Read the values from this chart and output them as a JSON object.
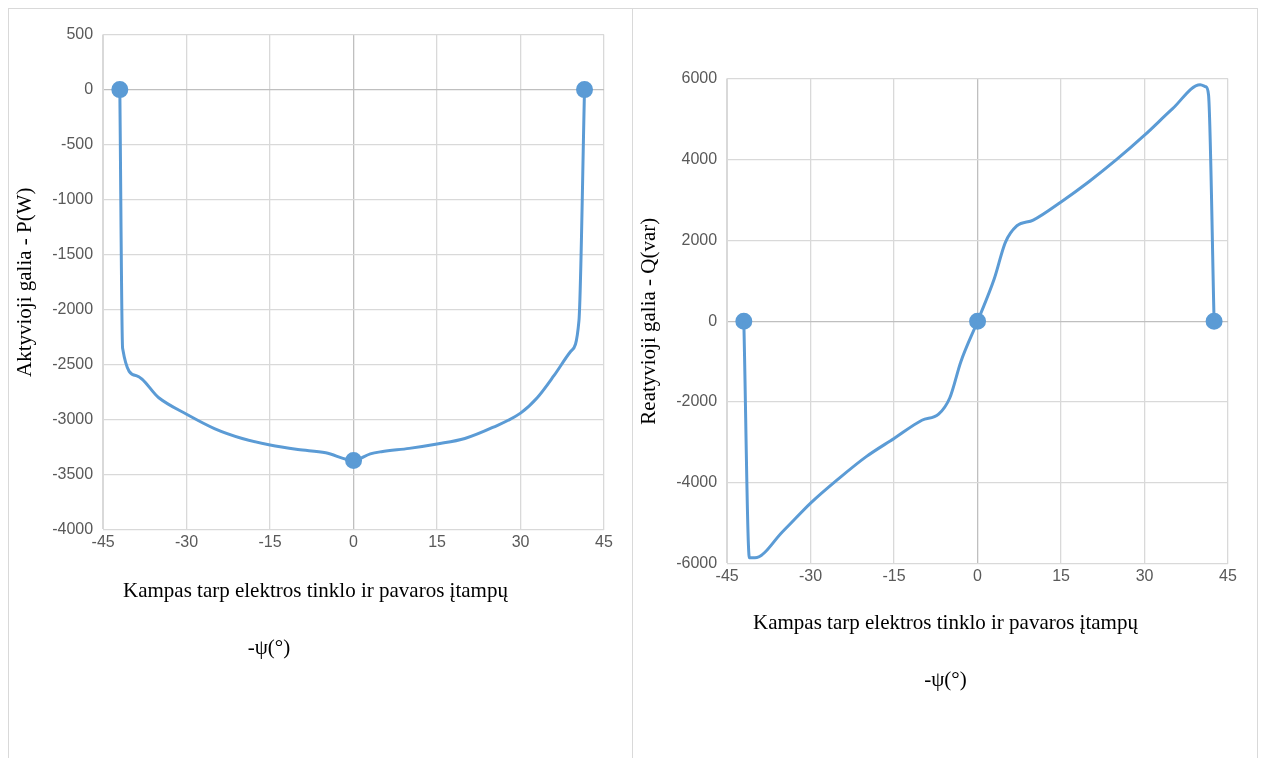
{
  "chart_data": [
    {
      "type": "line",
      "xlabel": "Kampas tarp elektros tinklo ir pavaros įtampų",
      "ylabel": "Aktyvioji galia - P(W)",
      "annotations": [
        "-ψ(°)"
      ],
      "xlim": [
        -45,
        45
      ],
      "xticks": [
        -45,
        -30,
        -15,
        0,
        15,
        30,
        45
      ],
      "ylim": [
        -4000,
        500
      ],
      "yticks": [
        -4000,
        -3500,
        -3000,
        -2500,
        -2000,
        -1500,
        -1000,
        -500,
        0,
        500
      ],
      "grid": true,
      "legend": false,
      "series": [
        {
          "marker": "none",
          "color": "#5b9bd5",
          "x": [
            -42,
            -41.5,
            -39,
            -35,
            -30,
            -25,
            -20,
            -15,
            -10,
            -5,
            0,
            3,
            5,
            10,
            15,
            20,
            25,
            30,
            33,
            36,
            39,
            40.5,
            41.5
          ],
          "values": [
            0,
            -2350,
            -2600,
            -2800,
            -2950,
            -3080,
            -3170,
            -3230,
            -3270,
            -3300,
            -3370,
            -3310,
            -3290,
            -3260,
            -3220,
            -3170,
            -3070,
            -2940,
            -2800,
            -2600,
            -2380,
            -2100,
            0
          ]
        },
        {
          "type": "scatter",
          "marker": "circle",
          "color": "#5b9bd5",
          "x": [
            -42,
            0,
            41.5
          ],
          "values": [
            0,
            -3370,
            0
          ]
        }
      ]
    },
    {
      "type": "line",
      "xlabel": "Kampas tarp elektros tinklo ir pavaros įtampų",
      "ylabel": "Reatyvioji galia - Q(var)",
      "annotations": [
        "-ψ(°)"
      ],
      "xlim": [
        -45,
        45
      ],
      "xticks": [
        -45,
        -30,
        -15,
        0,
        15,
        30,
        45
      ],
      "ylim": [
        -6000,
        6000
      ],
      "yticks": [
        -6000,
        -4000,
        -2000,
        0,
        2000,
        4000,
        6000
      ],
      "grid": true,
      "legend": false,
      "series": [
        {
          "marker": "none",
          "color": "#5b9bd5",
          "x": [
            -42,
            -41,
            -40,
            -35,
            -30,
            -25,
            -20,
            -15,
            -10,
            -7,
            -5,
            -3,
            0,
            3,
            5,
            7,
            10,
            15,
            20,
            25,
            30,
            35,
            40,
            41,
            41.5,
            42.5
          ],
          "values": [
            0,
            -5850,
            -5850,
            -5200,
            -4500,
            -3900,
            -3350,
            -2900,
            -2450,
            -2300,
            -1900,
            -1000,
            0,
            1050,
            1950,
            2350,
            2500,
            2950,
            3450,
            4000,
            4600,
            5250,
            5850,
            5800,
            5600,
            0
          ]
        },
        {
          "type": "scatter",
          "marker": "circle",
          "color": "#5b9bd5",
          "x": [
            -42,
            0,
            42.5
          ],
          "values": [
            0,
            0,
            0
          ]
        }
      ]
    }
  ]
}
